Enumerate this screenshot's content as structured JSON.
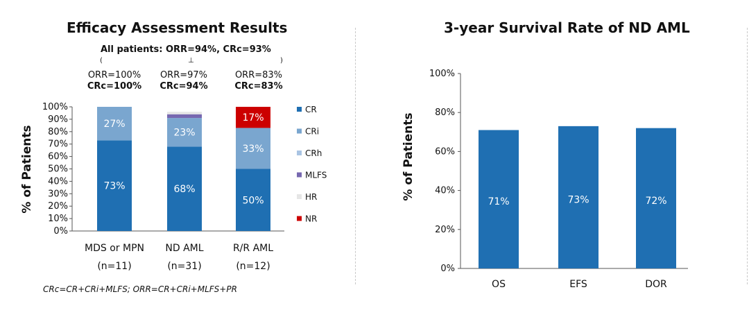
{
  "left_panel": {
    "title": "Efficacy Assessment Results",
    "summary": "All patients: ORR=94%,  CRc=93%",
    "summary_ticks": [
      "(",
      "⊥",
      ")"
    ],
    "groups": [
      {
        "orr": "ORR=100%",
        "crc": "CRc=100%"
      },
      {
        "orr": "ORR=97%",
        "crc": "CRc=94%"
      },
      {
        "orr": "ORR=83%",
        "crc": "CRc=83%"
      }
    ],
    "footnote": "CRc=CR+CRi+MLFS;  ORR=CR+CRi+MLFS+PR"
  },
  "right_panel": {
    "title": "3-year Survival Rate of ND AML"
  },
  "colors": {
    "CR": "#1f6fb2",
    "CRi": "#7aa6cf",
    "CRh": "#a9c4e3",
    "MLFS": "#7768b0",
    "HR": "#e6e6e6",
    "NR": "#cc0000"
  },
  "chart_data": [
    {
      "type": "bar",
      "stacked": true,
      "categories": [
        "MDS or MPN",
        "ND AML",
        "R/R AML"
      ],
      "sublabels": [
        "(n=11)",
        "(n=31)",
        "(n=12)"
      ],
      "series": [
        {
          "name": "CR",
          "values": [
            73,
            68,
            50
          ],
          "labels": [
            "73%",
            "68%",
            "50%"
          ]
        },
        {
          "name": "CRi",
          "values": [
            27,
            23,
            33
          ],
          "labels": [
            "27%",
            "23%",
            "33%"
          ]
        },
        {
          "name": "CRh",
          "values": [
            0,
            0,
            0
          ],
          "labels": [
            "",
            "",
            ""
          ]
        },
        {
          "name": "MLFS",
          "values": [
            0,
            3,
            0
          ],
          "labels": [
            "",
            "",
            ""
          ]
        },
        {
          "name": "HR",
          "values": [
            0,
            2,
            0
          ],
          "labels": [
            "",
            "",
            ""
          ]
        },
        {
          "name": "NR",
          "values": [
            0,
            0,
            17
          ],
          "labels": [
            "",
            "",
            "17%"
          ]
        }
      ],
      "ylabel": "% of Patients",
      "ylim": [
        0,
        100
      ],
      "yticks": [
        "0%",
        "10%",
        "20%",
        "30%",
        "40%",
        "50%",
        "60%",
        "70%",
        "80%",
        "90%",
        "100%"
      ],
      "legend": "right",
      "grid": false
    },
    {
      "type": "bar",
      "categories": [
        "OS",
        "EFS",
        "DOR"
      ],
      "values": [
        71,
        73,
        72
      ],
      "labels": [
        "71%",
        "73%",
        "72%"
      ],
      "ylabel": "% of Patients",
      "ylim": [
        0,
        100
      ],
      "yticks": [
        "0%",
        "20%",
        "40%",
        "60%",
        "80%",
        "100%"
      ],
      "grid": false
    }
  ]
}
